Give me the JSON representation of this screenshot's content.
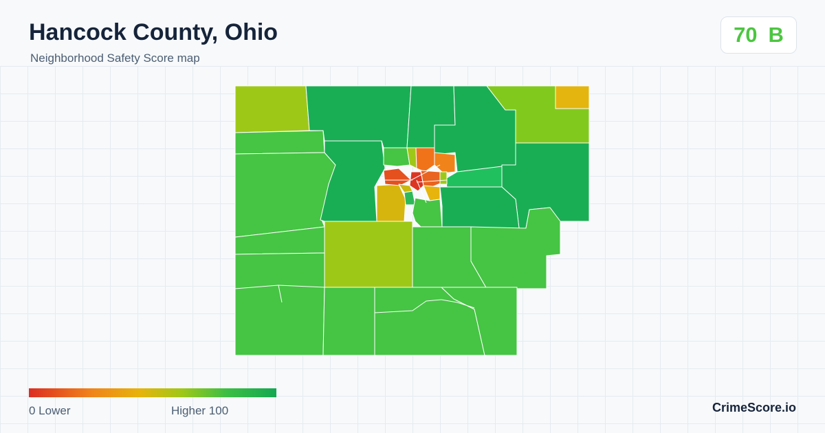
{
  "header": {
    "title": "Hancock County, Ohio",
    "subtitle": "Neighborhood Safety Score map"
  },
  "score": {
    "value": "70",
    "grade": "B",
    "color": "#4cc640"
  },
  "legend": {
    "min_label": "0  Lower",
    "max_label": "Higher  100",
    "min": 0,
    "max": 100,
    "colors": [
      "#dc2d22",
      "#f0831a",
      "#e6b40c",
      "#9ec818",
      "#3bbe44",
      "#15a852"
    ]
  },
  "brand": {
    "name": "CrimeScore.io"
  },
  "map": {
    "region": "Hancock County, Ohio",
    "border_color": "#ffffff"
  }
}
